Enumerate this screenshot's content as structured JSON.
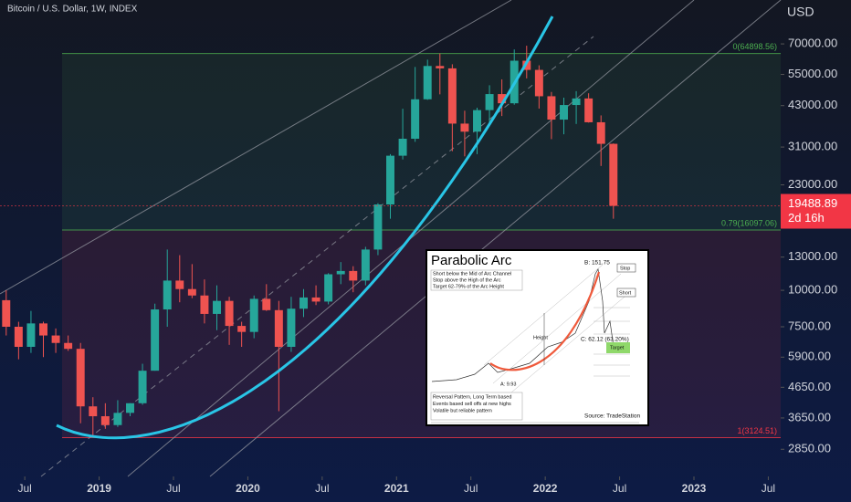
{
  "chart_data": {
    "type": "candlestick",
    "title": "Bitcoin / U.S. Dollar, 1W, INDEX",
    "currency": "USD",
    "log_scale": true,
    "up_color": "#26a69a",
    "down_color": "#ef5350",
    "ylim": [
      2300,
      99000
    ],
    "yticks": [
      {
        "value": 70000,
        "label": "70000.00"
      },
      {
        "value": 55000,
        "label": "55000.00"
      },
      {
        "value": 43000,
        "label": "43000.00"
      },
      {
        "value": 31000,
        "label": "31000.00"
      },
      {
        "value": 23000,
        "label": "23000.00"
      },
      {
        "value": 13000,
        "label": "13000.00"
      },
      {
        "value": 10000,
        "label": "10000.00"
      },
      {
        "value": 7500,
        "label": "7500.00"
      },
      {
        "value": 5900,
        "label": "5900.00"
      },
      {
        "value": 4650,
        "label": "4650.00"
      },
      {
        "value": 3650,
        "label": "3650.00"
      },
      {
        "value": 2850,
        "label": "2850.00"
      }
    ],
    "xlim": [
      "2018-05",
      "2023-08"
    ],
    "xticks": [
      {
        "value": "2018-07",
        "label": "Jul"
      },
      {
        "value": "2019-01",
        "label": "2019"
      },
      {
        "value": "2019-07",
        "label": "Jul"
      },
      {
        "value": "2020-01",
        "label": "2020"
      },
      {
        "value": "2020-07",
        "label": "Jul"
      },
      {
        "value": "2021-01",
        "label": "2021"
      },
      {
        "value": "2021-07",
        "label": "Jul"
      },
      {
        "value": "2022-01",
        "label": "2022"
      },
      {
        "value": "2022-07",
        "label": "Jul"
      },
      {
        "value": "2023-01",
        "label": "2023"
      },
      {
        "value": "2023-07",
        "label": "Jul"
      }
    ],
    "x": [
      "2018-05",
      "2018-06",
      "2018-07",
      "2018-08",
      "2018-09",
      "2018-10",
      "2018-11",
      "2018-12",
      "2019-01",
      "2019-02",
      "2019-03",
      "2019-04",
      "2019-05",
      "2019-06",
      "2019-07",
      "2019-08",
      "2019-09",
      "2019-10",
      "2019-11",
      "2019-12",
      "2020-01",
      "2020-02",
      "2020-03",
      "2020-04",
      "2020-05",
      "2020-06",
      "2020-07",
      "2020-08",
      "2020-09",
      "2020-10",
      "2020-11",
      "2020-12",
      "2021-01",
      "2021-02",
      "2021-03",
      "2021-04",
      "2021-05",
      "2021-06",
      "2021-07",
      "2021-08",
      "2021-09",
      "2021-10",
      "2021-11",
      "2021-12",
      "2022-01",
      "2022-02",
      "2022-03",
      "2022-04",
      "2022-05",
      "2022-06"
    ],
    "open": [
      9250,
      7500,
      6400,
      7700,
      7000,
      6600,
      6300,
      4000,
      3700,
      3450,
      3800,
      4100,
      5300,
      8600,
      10800,
      10100,
      9600,
      8300,
      9200,
      7550,
      7200,
      9350,
      8550,
      6400,
      8650,
      9450,
      9150,
      11350,
      11650,
      10800,
      13800,
      19700,
      28950,
      33100,
      45200,
      58800,
      57700,
      37300,
      35000,
      41500,
      47100,
      43800,
      61300,
      57000,
      46300,
      38500,
      43200,
      45500,
      37700,
      31800
    ],
    "high": [
      10000,
      7800,
      8500,
      7800,
      7400,
      7000,
      6600,
      4300,
      4100,
      4200,
      4100,
      5600,
      9000,
      13800,
      13200,
      12300,
      10900,
      10400,
      9500,
      7800,
      9600,
      10500,
      9200,
      9500,
      10100,
      10400,
      11450,
      12500,
      12100,
      14100,
      19900,
      29300,
      41950,
      58350,
      61800,
      64899,
      59600,
      41300,
      42300,
      50500,
      52900,
      67000,
      69000,
      59100,
      47900,
      45800,
      48200,
      47400,
      39800,
      31900
    ],
    "low": [
      7000,
      5800,
      6100,
      5900,
      6100,
      6200,
      3500,
      3150,
      3350,
      3400,
      3700,
      4050,
      5300,
      7500,
      9100,
      9400,
      7700,
      7300,
      6500,
      6400,
      6850,
      8500,
      3850,
      6150,
      8100,
      8900,
      8950,
      10500,
      9850,
      10400,
      13200,
      17600,
      28100,
      32300,
      45000,
      47000,
      30000,
      28800,
      29300,
      37300,
      39600,
      43300,
      53300,
      42000,
      33000,
      34300,
      37200,
      37600,
      26700,
      17600
    ],
    "close": [
      7500,
      6400,
      7700,
      7000,
      6600,
      6300,
      4000,
      3700,
      3450,
      3800,
      4100,
      5300,
      8600,
      10800,
      10100,
      9600,
      8300,
      9200,
      7550,
      7200,
      9350,
      8550,
      6400,
      8650,
      9450,
      9150,
      11350,
      11650,
      10800,
      13800,
      19700,
      28950,
      33100,
      45200,
      58800,
      57700,
      37300,
      35000,
      41500,
      47100,
      43800,
      61300,
      57000,
      46300,
      38500,
      43200,
      45500,
      37700,
      31800,
      19488.89
    ],
    "last_price": 19488.89,
    "countdown": "2d 16h",
    "last_price_color": "#f23645",
    "fib_levels": [
      {
        "value": 64898.56,
        "label": "0(64898.56)"
      },
      {
        "value": 16097.06,
        "label": "0.79(16097.06)"
      },
      {
        "value": 3124.51,
        "label": "1(3124.51)"
      }
    ],
    "zone_colors": [
      "rgba(76,175,80,0.10)",
      "rgba(242,54,69,0.11)"
    ],
    "inset": {
      "title": "Parabolic Arc",
      "rules": [
        "Short below the Mid of Arc Channel",
        "Stop above the High of the Arc",
        "Target 62-79% of the Arc Height"
      ],
      "point_b": "B: 151.75",
      "stop": "Stop",
      "short": "Short",
      "height": "Height",
      "point_c": "C: 62.12 (63.20%)",
      "target": "Target",
      "point_a": "A: 9.93",
      "notes": [
        "Reversal Pattern, Long Term based",
        "Events based sell offs at new highs",
        "Volatile but reliable pattern"
      ],
      "source": "Source: TradeStation"
    }
  }
}
